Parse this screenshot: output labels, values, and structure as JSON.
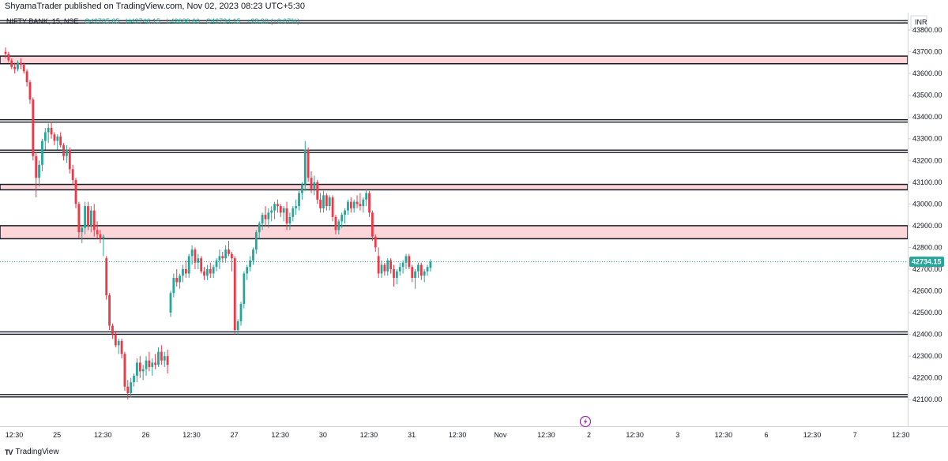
{
  "header": {
    "published_text": "ShyamaTrader published on TradingView.com, Nov 02, 2023 08:23 UTC+5:30"
  },
  "legend": {
    "symbol": "NIFTY BANK, 15, NSE",
    "open": "O42705.85",
    "high": "H42746.15",
    "low": "L42688.60",
    "close": "C42734.15",
    "change": "+28.30 (+0.07%)"
  },
  "currency": "INR",
  "last_price_label": "42734.15",
  "footer": {
    "brand": "TradingView",
    "logo": "TV"
  },
  "colors": {
    "up": "#26a69a",
    "down": "#f23645",
    "zone_fill": "#fcd6d9",
    "level_line": "#131722",
    "price_line": "#26a69a",
    "bolt_icon": "#9c27b0"
  },
  "chart_data": {
    "type": "candlestick",
    "symbol": "NIFTY BANK",
    "timeframe": "15",
    "exchange": "NSE",
    "ylim": [
      42050,
      43880
    ],
    "y_ticks": [
      43800,
      43700,
      43600,
      43500,
      43400,
      43300,
      43200,
      43100,
      43000,
      42900,
      42800,
      42700,
      42600,
      42500,
      42400,
      42300,
      42200,
      42100
    ],
    "y_tick_labels": [
      "43800.00",
      "43700.00",
      "43600.00",
      "43500.00",
      "43400.00",
      "43300.00",
      "43200.00",
      "43100.00",
      "43000.00",
      "42900.00",
      "42800.00",
      "42700.00",
      "42600.00",
      "42500.00",
      "42400.00",
      "42300.00",
      "42200.00",
      "42100.00"
    ],
    "x_tick_labels": [
      "12:30",
      "25",
      "12:30",
      "26",
      "12:30",
      "27",
      "12:30",
      "30",
      "12:30",
      "31",
      "12:30",
      "Nov",
      "12:30",
      "2",
      "12:30",
      "3",
      "12:30",
      "6",
      "12:30",
      "7",
      "12:30"
    ],
    "x_tick_bars": [
      0,
      14,
      29,
      43,
      58,
      72,
      87,
      101,
      116,
      130,
      145,
      159,
      174,
      188,
      203,
      217,
      232,
      246,
      261,
      275,
      290
    ],
    "last_price": 42734.15,
    "horizontal_levels": [
      43838,
      43382,
      43242,
      42406,
      42118
    ],
    "zones": [
      [
        43645,
        43680
      ],
      [
        43065,
        43090
      ],
      [
        42840,
        42900
      ]
    ],
    "candles": [
      [
        43700,
        43720,
        43670,
        43690
      ],
      [
        43690,
        43700,
        43650,
        43660
      ],
      [
        43660,
        43670,
        43620,
        43630
      ],
      [
        43630,
        43650,
        43600,
        43620
      ],
      [
        43620,
        43660,
        43610,
        43650
      ],
      [
        43650,
        43670,
        43620,
        43640
      ],
      [
        43640,
        43650,
        43600,
        43610
      ],
      [
        43610,
        43620,
        43540,
        43560
      ],
      [
        43560,
        43570,
        43460,
        43480
      ],
      [
        43480,
        43490,
        43200,
        43220
      ],
      [
        43220,
        43240,
        43030,
        43120
      ],
      [
        43120,
        43200,
        43080,
        43180
      ],
      [
        43180,
        43300,
        43150,
        43290
      ],
      [
        43290,
        43350,
        43250,
        43330
      ],
      [
        43330,
        43370,
        43280,
        43350
      ],
      [
        43350,
        43380,
        43300,
        43320
      ],
      [
        43320,
        43330,
        43270,
        43290
      ],
      [
        43290,
        43320,
        43250,
        43310
      ],
      [
        43310,
        43330,
        43260,
        43270
      ],
      [
        43270,
        43280,
        43200,
        43220
      ],
      [
        43220,
        43270,
        43190,
        43250
      ],
      [
        43250,
        43260,
        43140,
        43160
      ],
      [
        43160,
        43180,
        43090,
        43110
      ],
      [
        43110,
        43120,
        42980,
        43000
      ],
      [
        43000,
        43010,
        42840,
        42870
      ],
      [
        42870,
        42900,
        42820,
        42890
      ],
      [
        42890,
        43010,
        42860,
        42990
      ],
      [
        42990,
        43010,
        42880,
        42900
      ],
      [
        42900,
        42990,
        42870,
        42970
      ],
      [
        42970,
        43000,
        42850,
        42880
      ],
      [
        42880,
        42920,
        42840,
        42860
      ],
      [
        42860,
        42880,
        42820,
        42840
      ],
      [
        42840,
        42860,
        42760,
        42850
      ],
      [
        42750,
        42760,
        42560,
        42580
      ],
      [
        42580,
        42590,
        42420,
        42440
      ],
      [
        42440,
        42450,
        42380,
        42400
      ],
      [
        42400,
        42410,
        42340,
        42350
      ],
      [
        42350,
        42380,
        42310,
        42370
      ],
      [
        42370,
        42380,
        42290,
        42310
      ],
      [
        42310,
        42320,
        42140,
        42160
      ],
      [
        42160,
        42190,
        42100,
        42130
      ],
      [
        42130,
        42200,
        42110,
        42180
      ],
      [
        42180,
        42220,
        42160,
        42210
      ],
      [
        42210,
        42290,
        42180,
        42270
      ],
      [
        42270,
        42300,
        42200,
        42230
      ],
      [
        42230,
        42260,
        42190,
        42240
      ],
      [
        42240,
        42300,
        42210,
        42280
      ],
      [
        42280,
        42320,
        42230,
        42250
      ],
      [
        42250,
        42290,
        42210,
        42270
      ],
      [
        42270,
        42310,
        42240,
        42260
      ],
      [
        42260,
        42340,
        42250,
        42320
      ],
      [
        42320,
        42350,
        42260,
        42280
      ],
      [
        42280,
        42320,
        42250,
        42300
      ],
      [
        42300,
        42330,
        42220,
        42260
      ],
      [
        42500,
        42600,
        42480,
        42590
      ],
      [
        42590,
        42680,
        42570,
        42660
      ],
      [
        42660,
        42700,
        42620,
        42640
      ],
      [
        42640,
        42680,
        42610,
        42670
      ],
      [
        42670,
        42720,
        42640,
        42700
      ],
      [
        42700,
        42740,
        42660,
        42680
      ],
      [
        42680,
        42770,
        42660,
        42760
      ],
      [
        42760,
        42810,
        42720,
        42790
      ],
      [
        42790,
        42800,
        42700,
        42730
      ],
      [
        42730,
        42770,
        42700,
        42750
      ],
      [
        42750,
        42760,
        42680,
        42690
      ],
      [
        42690,
        42710,
        42650,
        42670
      ],
      [
        42670,
        42720,
        42650,
        42700
      ],
      [
        42700,
        42730,
        42660,
        42680
      ],
      [
        42680,
        42720,
        42660,
        42710
      ],
      [
        42710,
        42750,
        42690,
        42740
      ],
      [
        42740,
        42790,
        42700,
        42760
      ],
      [
        42760,
        42780,
        42730,
        42750
      ],
      [
        42750,
        42810,
        42730,
        42790
      ],
      [
        42790,
        42830,
        42760,
        42770
      ],
      [
        42770,
        42780,
        42690,
        42750
      ],
      [
        42750,
        42760,
        42400,
        42420
      ],
      [
        42420,
        42470,
        42400,
        42460
      ],
      [
        42460,
        42550,
        42440,
        42540
      ],
      [
        42540,
        42690,
        42520,
        42680
      ],
      [
        42680,
        42720,
        42650,
        42710
      ],
      [
        42710,
        42760,
        42690,
        42740
      ],
      [
        42740,
        42800,
        42720,
        42790
      ],
      [
        42790,
        42880,
        42770,
        42870
      ],
      [
        42870,
        42920,
        42840,
        42910
      ],
      [
        42910,
        42960,
        42880,
        42950
      ],
      [
        42950,
        42990,
        42900,
        42930
      ],
      [
        42930,
        42980,
        42890,
        42960
      ],
      [
        42960,
        42990,
        42920,
        42970
      ],
      [
        42970,
        43010,
        42930,
        43000
      ],
      [
        43000,
        43020,
        42960,
        42990
      ],
      [
        42990,
        43000,
        42940,
        42960
      ],
      [
        42960,
        42990,
        42920,
        42980
      ],
      [
        42980,
        43010,
        42880,
        42910
      ],
      [
        42910,
        42960,
        42880,
        42940
      ],
      [
        42940,
        42990,
        42920,
        42980
      ],
      [
        42980,
        43020,
        42950,
        42990
      ],
      [
        42990,
        43060,
        42970,
        43050
      ],
      [
        43050,
        43100,
        43020,
        43090
      ],
      [
        43090,
        43290,
        43060,
        43250
      ],
      [
        43250,
        43260,
        43100,
        43120
      ],
      [
        43120,
        43150,
        43050,
        43070
      ],
      [
        43070,
        43130,
        43040,
        43100
      ],
      [
        43100,
        43110,
        43000,
        43020
      ],
      [
        43020,
        43050,
        42960,
        42980
      ],
      [
        42980,
        43060,
        42960,
        43040
      ],
      [
        43040,
        43050,
        42970,
        42990
      ],
      [
        42990,
        43040,
        42970,
        43030
      ],
      [
        43030,
        43040,
        42920,
        42940
      ],
      [
        42940,
        42950,
        42860,
        42880
      ],
      [
        42880,
        42930,
        42860,
        42920
      ],
      [
        42920,
        42960,
        42890,
        42950
      ],
      [
        42950,
        42980,
        42910,
        42970
      ],
      [
        42970,
        43020,
        42950,
        43010
      ],
      [
        43010,
        43030,
        42960,
        42980
      ],
      [
        42980,
        43020,
        42960,
        43010
      ],
      [
        43010,
        43040,
        42980,
        43000
      ],
      [
        43000,
        43050,
        42970,
        42990
      ],
      [
        42990,
        43030,
        42960,
        43020
      ],
      [
        43020,
        43070,
        42990,
        43050
      ],
      [
        43050,
        43060,
        42940,
        42960
      ],
      [
        42960,
        42970,
        42830,
        42850
      ],
      [
        42850,
        42860,
        42780,
        42800
      ],
      [
        42760,
        42800,
        42660,
        42680
      ],
      [
        42680,
        42740,
        42660,
        42720
      ],
      [
        42720,
        42730,
        42670,
        42690
      ],
      [
        42690,
        42750,
        42670,
        42740
      ],
      [
        42740,
        42750,
        42680,
        42700
      ],
      [
        42700,
        42720,
        42620,
        42660
      ],
      [
        42660,
        42700,
        42630,
        42690
      ],
      [
        42690,
        42730,
        42670,
        42710
      ],
      [
        42710,
        42740,
        42680,
        42730
      ],
      [
        42730,
        42770,
        42700,
        42760
      ],
      [
        42760,
        42770,
        42700,
        42710
      ],
      [
        42710,
        42720,
        42640,
        42660
      ],
      [
        42660,
        42700,
        42610,
        42690
      ],
      [
        42690,
        42730,
        42660,
        42720
      ],
      [
        42720,
        42730,
        42650,
        42670
      ],
      [
        42670,
        42700,
        42640,
        42690
      ],
      [
        42690,
        42720,
        42670,
        42710
      ],
      [
        42705.85,
        42746.15,
        42688.6,
        42734.15
      ]
    ]
  }
}
